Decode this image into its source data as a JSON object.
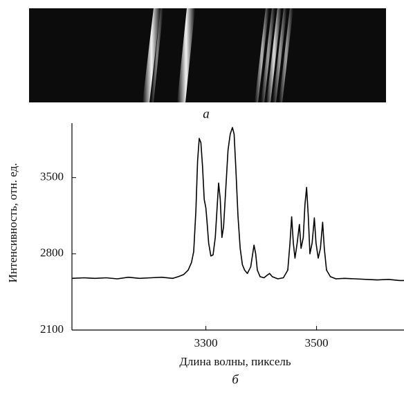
{
  "panel_a_label": "а",
  "chart_data": {
    "type": "line",
    "ylabel": "Интенсивность, отн. ед.",
    "xlabel": "Длина волны, пиксель",
    "caption": "б",
    "xlim": [
      3058,
      3658
    ],
    "ylim": [
      2100,
      4000
    ],
    "xticks": [
      3300,
      3500
    ],
    "yticks": [
      2100,
      2800,
      3500
    ],
    "series": [
      {
        "color": "#000000",
        "x": [
          3058,
          3080,
          3100,
          3120,
          3140,
          3160,
          3180,
          3200,
          3220,
          3240,
          3250,
          3260,
          3268,
          3274,
          3278,
          3282,
          3285,
          3288,
          3291,
          3294,
          3297,
          3300,
          3302,
          3305,
          3309,
          3313,
          3317,
          3320,
          3323,
          3326,
          3329,
          3332,
          3336,
          3340,
          3344,
          3348,
          3351,
          3354,
          3358,
          3362,
          3366,
          3370,
          3375,
          3381,
          3384,
          3387,
          3390,
          3393,
          3398,
          3405,
          3410,
          3415,
          3420,
          3430,
          3440,
          3448,
          3452,
          3455,
          3458,
          3461,
          3465,
          3469,
          3472,
          3476,
          3479,
          3482,
          3485,
          3488,
          3492,
          3496,
          3499,
          3503,
          3507,
          3511,
          3514,
          3518,
          3525,
          3535,
          3550,
          3570,
          3590,
          3610,
          3630,
          3650,
          3658
        ],
        "values": [
          2575,
          2580,
          2575,
          2580,
          2570,
          2585,
          2575,
          2580,
          2585,
          2575,
          2590,
          2610,
          2650,
          2720,
          2820,
          3200,
          3650,
          3860,
          3820,
          3600,
          3300,
          3220,
          3100,
          2900,
          2780,
          2790,
          2950,
          3200,
          3450,
          3300,
          2950,
          3050,
          3400,
          3750,
          3900,
          3960,
          3900,
          3600,
          3150,
          2850,
          2700,
          2650,
          2620,
          2680,
          2780,
          2880,
          2800,
          2650,
          2590,
          2580,
          2600,
          2620,
          2590,
          2570,
          2580,
          2650,
          2900,
          3140,
          2900,
          2760,
          2900,
          3070,
          2850,
          2950,
          3250,
          3410,
          3150,
          2800,
          2900,
          3130,
          2900,
          2760,
          2850,
          3090,
          2850,
          2650,
          2590,
          2570,
          2575,
          2570,
          2565,
          2560,
          2565,
          2555,
          2555
        ]
      }
    ]
  }
}
